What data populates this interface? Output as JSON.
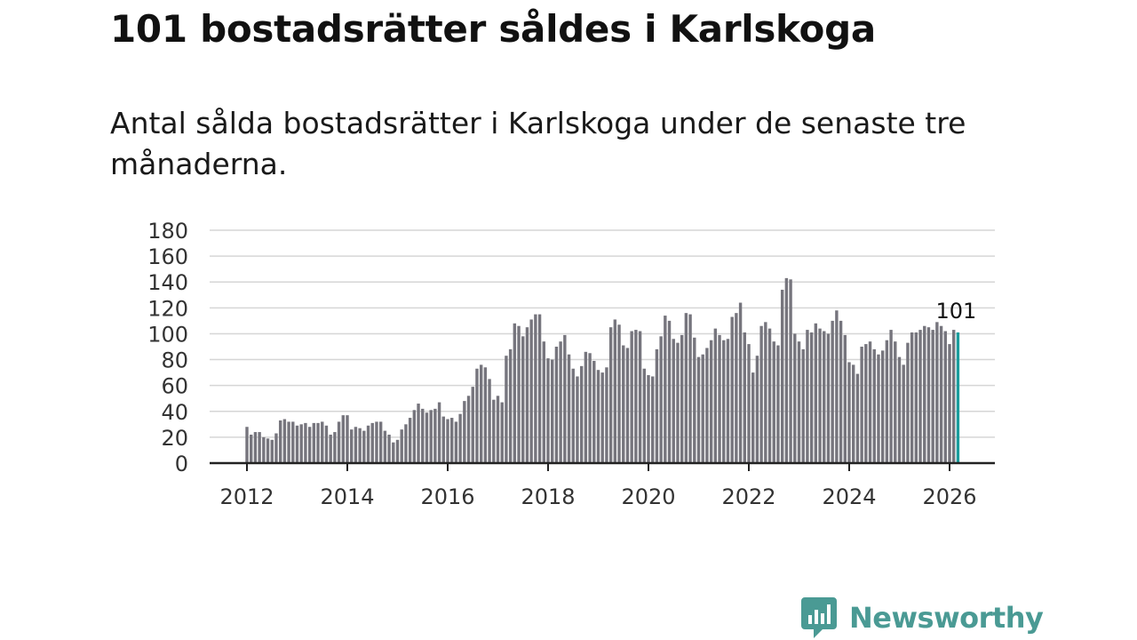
{
  "header": {
    "title": "101 bostadsrätter såldes i Karlskoga",
    "subtitle": "Antal sålda bostadsrätter i Karlskoga under de senaste tre månaderna."
  },
  "branding": {
    "name": "Newsworthy",
    "color": "#4a9a94",
    "icon": "newsworthy-chart-bubble-icon"
  },
  "colors": {
    "bar": "#76757d",
    "highlight": "#1a9c9c",
    "grid": "#d6d6d6",
    "axis": "#222222"
  },
  "chart_data": {
    "type": "bar",
    "title": "101 bostadsrätter såldes i Karlskoga",
    "subtitle": "Antal sålda bostadsrätter i Karlskoga under de senaste tre månaderna.",
    "xlabel": "",
    "ylabel": "",
    "ylim": [
      0,
      180
    ],
    "yticks": [
      0,
      20,
      40,
      60,
      80,
      100,
      120,
      140,
      160,
      180
    ],
    "xticks": [
      "2012",
      "2014",
      "2016",
      "2018",
      "2020",
      "2022",
      "2024",
      "2026"
    ],
    "grid": true,
    "series_start": "2012-01",
    "frequency": "monthly",
    "values": [
      28,
      22,
      24,
      24,
      20,
      19,
      18,
      23,
      33,
      34,
      32,
      32,
      29,
      30,
      31,
      28,
      31,
      31,
      32,
      29,
      22,
      24,
      32,
      37,
      37,
      26,
      28,
      27,
      25,
      29,
      31,
      32,
      32,
      25,
      22,
      16,
      18,
      26,
      30,
      35,
      41,
      46,
      42,
      39,
      41,
      42,
      47,
      36,
      34,
      35,
      32,
      38,
      48,
      52,
      59,
      73,
      76,
      74,
      65,
      49,
      52,
      47,
      83,
      88,
      108,
      106,
      98,
      105,
      111,
      115,
      115,
      94,
      81,
      80,
      90,
      94,
      99,
      84,
      73,
      67,
      75,
      86,
      85,
      79,
      72,
      70,
      74,
      105,
      111,
      107,
      91,
      89,
      102,
      103,
      102,
      73,
      68,
      67,
      88,
      98,
      114,
      110,
      96,
      93,
      99,
      116,
      115,
      97,
      82,
      84,
      89,
      95,
      104,
      99,
      95,
      96,
      113,
      116,
      124,
      101,
      92,
      70,
      83,
      106,
      109,
      104,
      94,
      91,
      134,
      143,
      142,
      100,
      94,
      88,
      103,
      101,
      108,
      104,
      102,
      100,
      110,
      118,
      110,
      99,
      78,
      76,
      69,
      90,
      92,
      94,
      88,
      84,
      87,
      95,
      103,
      94,
      82,
      76,
      93,
      101,
      101,
      103,
      106,
      105,
      103,
      109,
      106,
      102,
      92,
      103,
      101
    ],
    "annotations": [
      {
        "label": "101",
        "target": "last_bar"
      }
    ]
  }
}
